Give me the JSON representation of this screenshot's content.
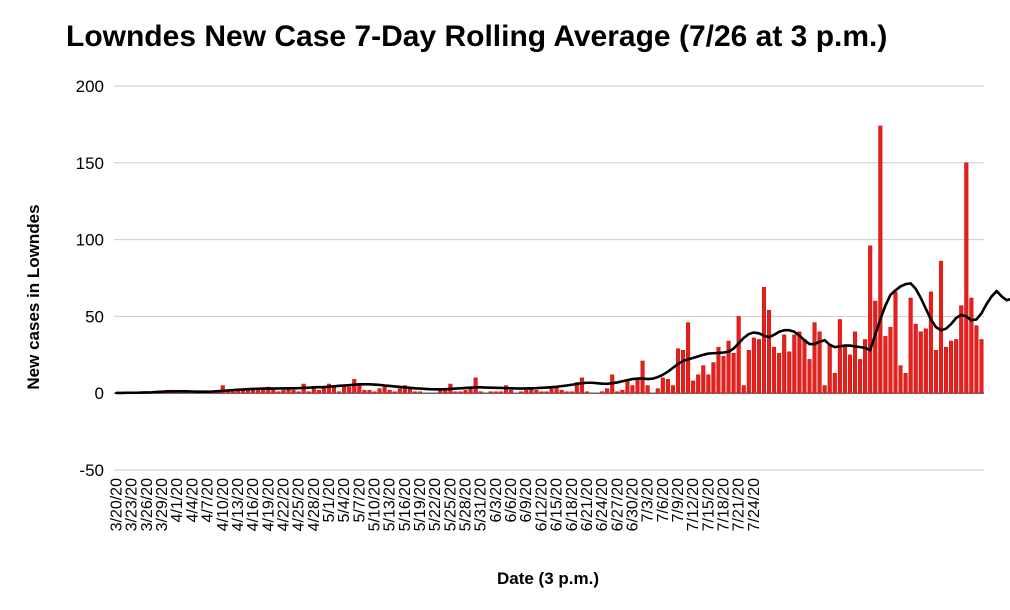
{
  "chart_data": {
    "type": "bar",
    "title": "Lowndes New Case 7-Day Rolling Average (7/26 at 3 p.m.)",
    "xlabel": "Date (3 p.m.)",
    "ylabel": "New cases in Lowndes",
    "ylim": [
      -50,
      200
    ],
    "yticks": [
      -50,
      0,
      50,
      100,
      150,
      200
    ],
    "grid": true,
    "legend": "none",
    "x_start": "3/20/20",
    "x_end": "7/26/20",
    "tick_labels": [
      "3/20/20",
      "3/23/20",
      "3/26/20",
      "3/29/20",
      "4/1/20",
      "4/4/20",
      "4/7/20",
      "4/10/20",
      "4/13/20",
      "4/16/20",
      "4/19/20",
      "4/22/20",
      "4/25/20",
      "4/28/20",
      "5/1/20",
      "5/4/20",
      "5/7/20",
      "5/10/20",
      "5/13/20",
      "5/16/20",
      "5/19/20",
      "5/22/20",
      "5/25/20",
      "5/28/20",
      "5/31/20",
      "6/3/20",
      "6/6/20",
      "6/9/20",
      "6/12/20",
      "6/15/20",
      "6/18/20",
      "6/21/20",
      "6/24/20",
      "6/27/20",
      "6/30/20",
      "7/3/20",
      "7/6/20",
      "7/9/20",
      "7/12/20",
      "7/15/20",
      "7/18/20",
      "7/21/20",
      "7/24/20"
    ],
    "series": [
      {
        "kind": "bar",
        "color": "#e8201c",
        "values": [
          0,
          0,
          0,
          0,
          0,
          0,
          1,
          0,
          0,
          1,
          2,
          2,
          0,
          0,
          1,
          0,
          1,
          0,
          1,
          1,
          1,
          5,
          2,
          1,
          3,
          3,
          2,
          2,
          3,
          3,
          4,
          2,
          1,
          2,
          3,
          2,
          1,
          6,
          1,
          3,
          2,
          4,
          6,
          5,
          1,
          5,
          4,
          9,
          5,
          2,
          2,
          1,
          3,
          4,
          2,
          1,
          3,
          5,
          3,
          1,
          1,
          0,
          0,
          0,
          2,
          3,
          6,
          1,
          1,
          2,
          4,
          10,
          1,
          0,
          1,
          1,
          1,
          5,
          2,
          0,
          1,
          2,
          3,
          2,
          1,
          1,
          3,
          4,
          2,
          1,
          1,
          7,
          10,
          1,
          0,
          0,
          1,
          3,
          12,
          1,
          2,
          8,
          5,
          9,
          21,
          5,
          0,
          3,
          10,
          9,
          5,
          29,
          28,
          46,
          8,
          12,
          18,
          12,
          20,
          30,
          24,
          34,
          26,
          50,
          5,
          28,
          36,
          35,
          69,
          54,
          30,
          26,
          38,
          27,
          38,
          40,
          35,
          22,
          46,
          40,
          5,
          32,
          13,
          48,
          30,
          25,
          40,
          22,
          35,
          96,
          60,
          174,
          37,
          43,
          66,
          18,
          13,
          62,
          45,
          40,
          42,
          66,
          28,
          86,
          30,
          34,
          35,
          57,
          150,
          62,
          44,
          35
        ]
      },
      {
        "kind": "line",
        "color": "#000000",
        "values": [
          0.2,
          0.2,
          0.3,
          0.3,
          0.3,
          0.4,
          0.5,
          0.6,
          0.8,
          1.0,
          1.1,
          1.2,
          1.2,
          1.2,
          1.2,
          1.1,
          1.0,
          1.0,
          1.0,
          1.1,
          1.3,
          1.5,
          1.8,
          2.0,
          2.2,
          2.4,
          2.6,
          2.8,
          2.9,
          3.0,
          3.0,
          3.0,
          3.1,
          3.1,
          3.2,
          3.2,
          3.3,
          3.4,
          3.6,
          3.8,
          3.9,
          4.0,
          4.2,
          4.5,
          4.8,
          5.0,
          5.2,
          5.5,
          5.8,
          5.8,
          5.8,
          5.6,
          5.4,
          5.0,
          4.7,
          4.4,
          4.1,
          3.8,
          3.5,
          3.2,
          3.0,
          2.8,
          2.6,
          2.5,
          2.5,
          2.6,
          2.8,
          3.0,
          3.2,
          3.4,
          3.6,
          3.8,
          3.8,
          3.7,
          3.6,
          3.5,
          3.4,
          3.3,
          3.2,
          3.1,
          3.0,
          3.1,
          3.2,
          3.3,
          3.5,
          3.7,
          3.9,
          4.2,
          4.6,
          5.0,
          5.5,
          6.0,
          6.5,
          6.8,
          6.8,
          6.5,
          6.2,
          6.1,
          6.5,
          7.0,
          7.8,
          8.5,
          9.2,
          9.5,
          9.6,
          9.2,
          9.5,
          10.5,
          12.0,
          14.0,
          16.5,
          19.0,
          21.0,
          22.0,
          23.0,
          24.0,
          25.0,
          25.8,
          26.0,
          26.2,
          26.5,
          27.0,
          29.0,
          32.5,
          36.0,
          38.5,
          39.5,
          39.0,
          37.5,
          36.5,
          38.0,
          40.0,
          41.0,
          41.0,
          40.0,
          37.5,
          34.5,
          32.0,
          32.0,
          33.5,
          34.5,
          31.5,
          30.0,
          30.5,
          31.0,
          31.0,
          30.5,
          30.0,
          29.5,
          28.0,
          38.0,
          48.0,
          57.0,
          64.0,
          67.0,
          69.5,
          71.0,
          71.5,
          68.0,
          62.0,
          55.0,
          48.0,
          43.0,
          41.0,
          42.0,
          45.0,
          49.0,
          51.0,
          50.0,
          47.5,
          48.0,
          52.0,
          58.0,
          63.0,
          66.5,
          63.0,
          60.5,
          61.5
        ]
      }
    ]
  }
}
